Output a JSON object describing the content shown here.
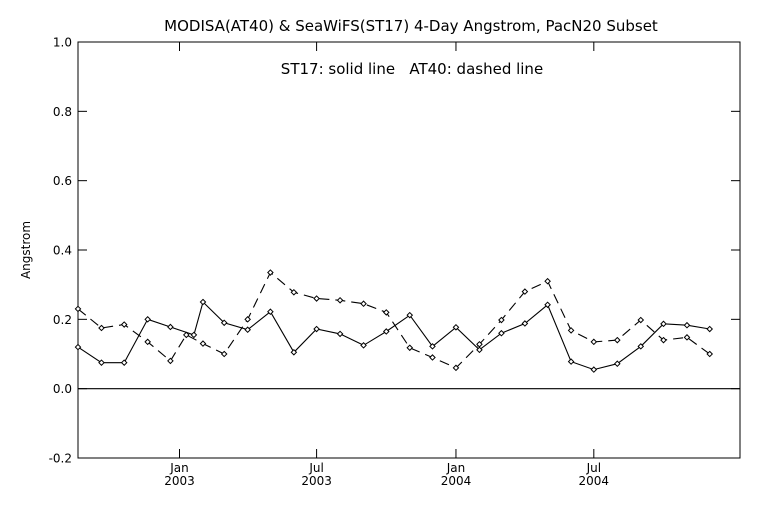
{
  "chart_data": {
    "type": "line",
    "title": "MODISA(AT40) & SeaWiFS(ST17) 4-Day Angstrom, PacN20 Subset",
    "annotation": "ST17: solid line   AT40: dashed line",
    "ylabel": "Angstrom",
    "xlabel": "",
    "ylim": [
      -0.2,
      1.0
    ],
    "yticks": [
      -0.2,
      0.0,
      0.2,
      0.4,
      0.6,
      0.8,
      1.0
    ],
    "ytick_labels": [
      "-0.2",
      "0.0",
      "0.2",
      "0.4",
      "0.6",
      "0.8",
      "1.0"
    ],
    "xlim": [
      "2002-08-20",
      "2005-01-10"
    ],
    "xticks": [
      {
        "date": "2003-01-01",
        "month": "Jan",
        "year": "2003"
      },
      {
        "date": "2003-07-01",
        "month": "Jul",
        "year": "2003"
      },
      {
        "date": "2004-01-01",
        "month": "Jan",
        "year": "2004"
      },
      {
        "date": "2004-07-01",
        "month": "Jul",
        "year": "2004"
      }
    ],
    "zero_line": 0.0,
    "grid": false,
    "series": [
      {
        "name": "ST17",
        "style": "solid",
        "color": "#000000",
        "points": [
          {
            "x": "2002-08-20",
            "y": 0.12
          },
          {
            "x": "2002-09-20",
            "y": 0.075
          },
          {
            "x": "2002-10-20",
            "y": 0.075
          },
          {
            "x": "2002-11-20",
            "y": 0.2
          },
          {
            "x": "2002-12-20",
            "y": 0.178
          },
          {
            "x": "2003-01-20",
            "y": 0.155
          },
          {
            "x": "2003-02-01",
            "y": 0.25
          },
          {
            "x": "2003-03-01",
            "y": 0.19
          },
          {
            "x": "2003-04-01",
            "y": 0.17
          },
          {
            "x": "2003-05-01",
            "y": 0.222
          },
          {
            "x": "2003-06-01",
            "y": 0.105
          },
          {
            "x": "2003-07-01",
            "y": 0.172
          },
          {
            "x": "2003-08-01",
            "y": 0.158
          },
          {
            "x": "2003-09-01",
            "y": 0.125
          },
          {
            "x": "2003-10-01",
            "y": 0.165
          },
          {
            "x": "2003-11-01",
            "y": 0.212
          },
          {
            "x": "2003-12-01",
            "y": 0.122
          },
          {
            "x": "2004-01-01",
            "y": 0.177
          },
          {
            "x": "2004-02-01",
            "y": 0.112
          },
          {
            "x": "2004-03-01",
            "y": 0.16
          },
          {
            "x": "2004-04-01",
            "y": 0.188
          },
          {
            "x": "2004-05-01",
            "y": 0.242
          },
          {
            "x": "2004-06-01",
            "y": 0.078
          },
          {
            "x": "2004-07-01",
            "y": 0.055
          },
          {
            "x": "2004-08-01",
            "y": 0.072
          },
          {
            "x": "2004-09-01",
            "y": 0.122
          },
          {
            "x": "2004-10-01",
            "y": 0.187
          },
          {
            "x": "2004-11-01",
            "y": 0.183
          },
          {
            "x": "2004-12-01",
            "y": 0.172
          }
        ]
      },
      {
        "name": "AT40",
        "style": "dashed",
        "color": "#000000",
        "points": [
          {
            "x": "2002-08-20",
            "y": 0.23
          },
          {
            "x": "2002-09-20",
            "y": 0.175
          },
          {
            "x": "2002-10-20",
            "y": 0.185
          },
          {
            "x": "2002-11-20",
            "y": 0.135
          },
          {
            "x": "2002-12-20",
            "y": 0.08
          },
          {
            "x": "2003-01-10",
            "y": 0.155
          },
          {
            "x": "2003-02-01",
            "y": 0.13
          },
          {
            "x": "2003-03-01",
            "y": 0.1
          },
          {
            "x": "2003-04-01",
            "y": 0.2
          },
          {
            "x": "2003-05-01",
            "y": 0.335
          },
          {
            "x": "2003-06-01",
            "y": 0.278
          },
          {
            "x": "2003-07-01",
            "y": 0.26
          },
          {
            "x": "2003-08-01",
            "y": 0.255
          },
          {
            "x": "2003-09-01",
            "y": 0.245
          },
          {
            "x": "2003-10-01",
            "y": 0.22
          },
          {
            "x": "2003-11-01",
            "y": 0.118
          },
          {
            "x": "2003-12-01",
            "y": 0.09
          },
          {
            "x": "2004-01-01",
            "y": 0.06
          },
          {
            "x": "2004-02-01",
            "y": 0.128
          },
          {
            "x": "2004-03-01",
            "y": 0.198
          },
          {
            "x": "2004-04-01",
            "y": 0.28
          },
          {
            "x": "2004-05-01",
            "y": 0.31
          },
          {
            "x": "2004-06-01",
            "y": 0.168
          },
          {
            "x": "2004-07-01",
            "y": 0.135
          },
          {
            "x": "2004-08-01",
            "y": 0.14
          },
          {
            "x": "2004-09-01",
            "y": 0.198
          },
          {
            "x": "2004-10-01",
            "y": 0.14
          },
          {
            "x": "2004-11-01",
            "y": 0.148
          },
          {
            "x": "2004-12-01",
            "y": 0.1
          }
        ]
      }
    ]
  }
}
